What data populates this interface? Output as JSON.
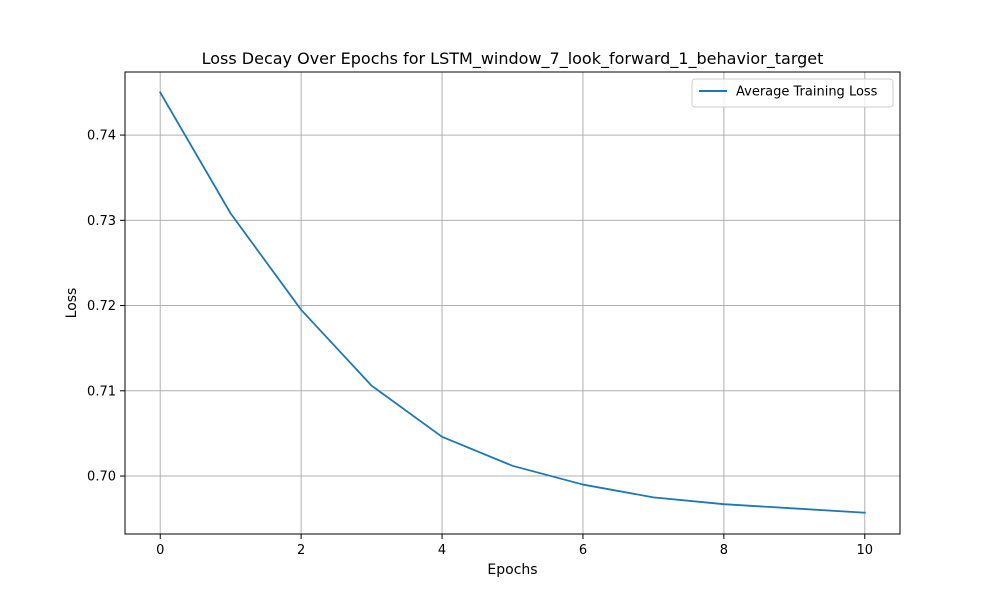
{
  "chart_data": {
    "type": "line",
    "title": "Loss Decay Over Epochs for LSTM_window_7_look_forward_1_behavior_target",
    "xlabel": "Epochs",
    "ylabel": "Loss",
    "xlim": [
      -0.5,
      10.5
    ],
    "ylim": [
      0.6932,
      0.7474
    ],
    "x_ticks": [
      0,
      2,
      4,
      6,
      8,
      10
    ],
    "x_tick_labels": [
      "0",
      "2",
      "4",
      "6",
      "8",
      "10"
    ],
    "y_ticks": [
      0.7,
      0.71,
      0.72,
      0.73,
      0.74
    ],
    "y_tick_labels": [
      "0.70",
      "0.71",
      "0.72",
      "0.73",
      "0.74"
    ],
    "grid": true,
    "legend_position": "top-right",
    "x": [
      0,
      1,
      2,
      3,
      4,
      5,
      6,
      7,
      8,
      9,
      10
    ],
    "series": [
      {
        "name": "Average Training Loss",
        "color": "#1f77b4",
        "values": [
          0.745,
          0.7308,
          0.7195,
          0.7106,
          0.7046,
          0.7012,
          0.699,
          0.6975,
          0.6967,
          0.6962,
          0.6957
        ]
      }
    ]
  }
}
